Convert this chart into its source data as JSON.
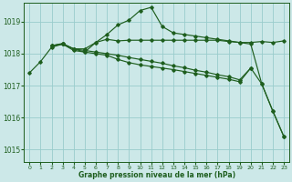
{
  "background_color": "#cce8e8",
  "grid_color": "#99cccc",
  "line_color": "#1e5e1e",
  "xlabel": "Graphe pression niveau de la mer (hPa)",
  "xlim": [
    -0.5,
    23.5
  ],
  "ylim": [
    1014.6,
    1019.6
  ],
  "yticks": [
    1015,
    1016,
    1017,
    1018,
    1019
  ],
  "xticks": [
    0,
    1,
    2,
    3,
    4,
    5,
    6,
    7,
    8,
    9,
    10,
    11,
    12,
    13,
    14,
    15,
    16,
    17,
    18,
    19,
    20,
    21,
    22,
    23
  ],
  "series1_x": [
    0,
    1,
    2,
    3,
    4,
    5,
    6,
    7,
    8,
    9,
    10,
    11,
    12,
    13,
    14,
    15,
    16,
    17,
    18,
    19,
    20,
    21,
    22,
    23
  ],
  "series1_y": [
    1017.4,
    1017.75,
    1018.2,
    1018.3,
    1018.1,
    1018.05,
    1018.35,
    1018.6,
    1018.9,
    1019.05,
    1019.35,
    1019.45,
    1018.85,
    1018.65,
    1018.6,
    1018.55,
    1018.5,
    1018.45,
    1018.4,
    1018.35,
    1018.3,
    1017.05,
    1016.2,
    1015.4
  ],
  "series2_x": [
    2,
    3,
    4,
    5,
    6,
    7,
    8,
    9,
    10,
    11,
    12,
    13,
    14,
    15,
    16,
    17,
    18,
    19,
    20,
    21,
    22,
    23
  ],
  "series2_y": [
    1018.25,
    1018.3,
    1018.15,
    1018.15,
    1018.35,
    1018.45,
    1018.4,
    1018.42,
    1018.42,
    1018.42,
    1018.42,
    1018.42,
    1018.42,
    1018.42,
    1018.42,
    1018.42,
    1018.38,
    1018.35,
    1018.35,
    1018.38,
    1018.35,
    1018.4
  ],
  "series3_x": [
    2,
    3,
    4,
    5,
    6,
    7,
    8,
    9,
    10,
    11,
    12,
    13,
    14,
    15,
    16,
    17,
    18,
    19,
    20
  ],
  "series3_y": [
    1018.25,
    1018.3,
    1018.15,
    1018.1,
    1018.05,
    1018.0,
    1017.95,
    1017.88,
    1017.82,
    1017.76,
    1017.7,
    1017.62,
    1017.56,
    1017.48,
    1017.42,
    1017.34,
    1017.28,
    1017.18,
    1017.55
  ],
  "series4_x": [
    2,
    3,
    4,
    5,
    6,
    7,
    8,
    9,
    10,
    11,
    12,
    13,
    14,
    15,
    16,
    17,
    18,
    19,
    20,
    21,
    22,
    23
  ],
  "series4_y": [
    1018.25,
    1018.32,
    1018.15,
    1018.05,
    1018.0,
    1017.95,
    1017.82,
    1017.72,
    1017.65,
    1017.6,
    1017.55,
    1017.5,
    1017.44,
    1017.38,
    1017.32,
    1017.26,
    1017.2,
    1017.12,
    1017.55,
    1017.05,
    1016.2,
    1015.4
  ]
}
